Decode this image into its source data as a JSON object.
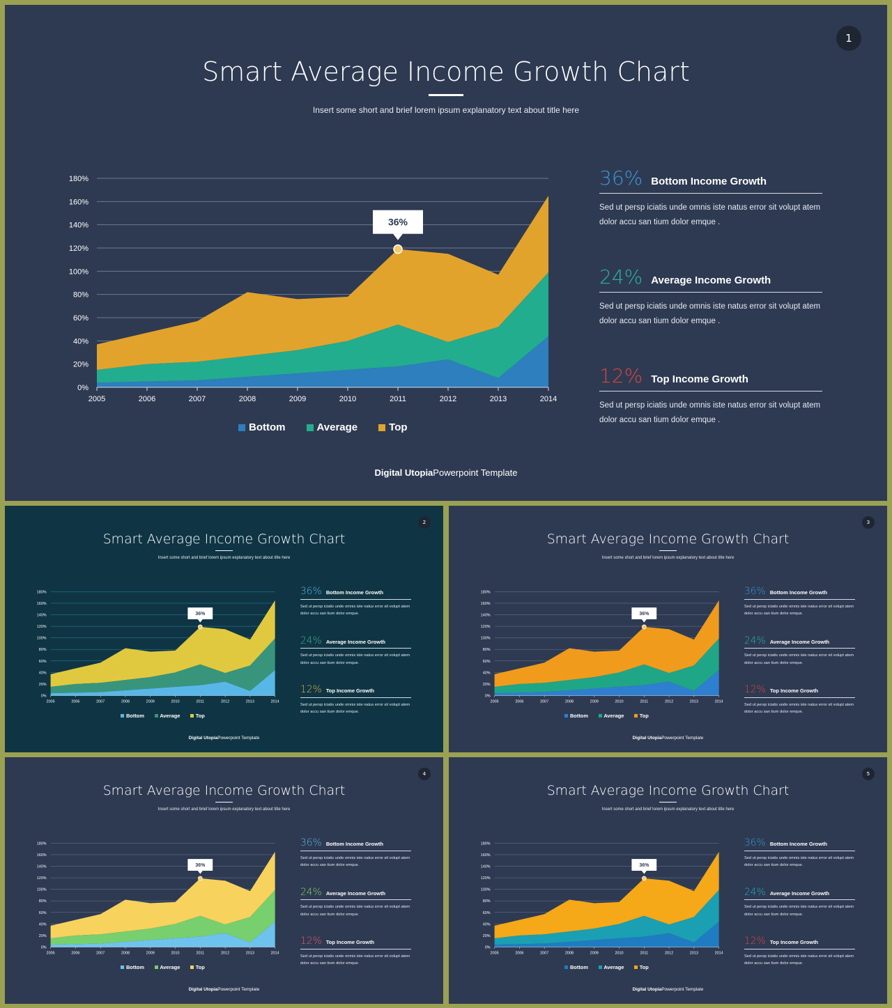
{
  "chart_data": {
    "type": "area",
    "stacked": true,
    "x": [
      "2005",
      "2006",
      "2007",
      "2008",
      "2009",
      "2010",
      "2011",
      "2012",
      "2013",
      "2014"
    ],
    "series": [
      {
        "name": "Bottom",
        "values": [
          4,
          5,
          6,
          9,
          12,
          15,
          18,
          24,
          8,
          44
        ]
      },
      {
        "name": "Average",
        "values": [
          11,
          15,
          16,
          18,
          20,
          25,
          36,
          15,
          44,
          55
        ]
      },
      {
        "name": "Top",
        "values": [
          22,
          27,
          35,
          55,
          44,
          38,
          65,
          76,
          45,
          66
        ]
      }
    ],
    "ylim": [
      0,
      180
    ],
    "yticks": [
      "0%",
      "20%",
      "40%",
      "60%",
      "80%",
      "100%",
      "120%",
      "140%",
      "160%",
      "180%"
    ],
    "callout": {
      "label": "36%",
      "x": "2011"
    },
    "grid": true,
    "legend_position": "bottom"
  },
  "slides": [
    {
      "number": "1",
      "title": "Smart Average Income Growth Chart",
      "subtitle": "Insert some short and brief lorem ipsum explanatory text about title here",
      "colors": {
        "background": "#2e3a52",
        "bottom": "#2e7fbd",
        "average": "#22ad8f",
        "top": "#e2a32c",
        "callout_ring": "#e2a32c",
        "grid": "#6b7b96",
        "pct1": "#3a96d6",
        "pct2": "#2bb39b",
        "pct3": "#d8463f"
      },
      "stats": [
        {
          "percent": "36%",
          "label": "Bottom Income Growth",
          "body": "Sed ut persp iciatis unde omnis iste natus error sit volupt atem dolor accu san tium dolor emque ."
        },
        {
          "percent": "24%",
          "label": "Average Income Growth",
          "body": "Sed ut persp iciatis unde omnis iste natus error sit volupt atem dolor accu san tium dolor emque ."
        },
        {
          "percent": "12%",
          "label": "Top Income Growth",
          "body": "Sed ut persp iciatis unde omnis iste natus error sit volupt atem dolor accu san tium dolor emque ."
        }
      ],
      "legend": [
        "Bottom",
        "Average",
        "Top"
      ],
      "footer_brand": "Digital Utopia",
      "footer_rest": "Powerpoint Template"
    },
    {
      "number": "2",
      "title": "Smart Average Income Growth Chart",
      "subtitle": "Insert some short and brief lorem ipsum explanatory text about title here",
      "colors": {
        "background": "#0f3544",
        "bottom": "#59b7e8",
        "average": "#38957c",
        "top": "#e0c93f",
        "callout_ring": "#e0c93f",
        "grid": "#2a8aa6",
        "pct1": "#5ab3e3",
        "pct2": "#3fae8f",
        "pct3": "#e0b13c"
      },
      "stats": [
        {
          "percent": "36%",
          "label": "Bottom Income Growth",
          "body": "Sed ut persp iciatis unde omnis iste natus error sit volupt atem dolor accu san tium dolor emque."
        },
        {
          "percent": "24%",
          "label": "Average Income Growth",
          "body": "Sed ut persp iciatis unde omnis iste natus error sit volupt atem dolor accu san tium dolor emque."
        },
        {
          "percent": "12%",
          "label": "Top Income Growth",
          "body": "Sed ut persp iciatis unde omnis iste natus error sit volupt atem dolor accu san tium dolor emque."
        }
      ],
      "legend": [
        "Bottom",
        "Average",
        "Top"
      ],
      "footer_brand": "Digital Utopia",
      "footer_rest": "Powerpoint Template"
    },
    {
      "number": "3",
      "title": "Smart Average Income Growth Chart",
      "subtitle": "Insert some short and brief lorem ipsum explanatory text about title here",
      "colors": {
        "background": "#2e3a52",
        "bottom": "#2e7fd0",
        "average": "#1fa687",
        "top": "#f19b1c",
        "callout_ring": "#f19b1c",
        "grid": "#6b7b96",
        "pct1": "#3a96d6",
        "pct2": "#2bb39b",
        "pct3": "#d8463f"
      },
      "stats": [
        {
          "percent": "36%",
          "label": "Bottom Income Growth",
          "body": "Sed ut persp iciatis unde omnis iste natus error sit volupt atem dolor accu san tium dolor emque."
        },
        {
          "percent": "24%",
          "label": "Average Income Growth",
          "body": "Sed ut persp iciatis unde omnis iste natus error sit volupt atem dolor accu san tium dolor emque."
        },
        {
          "percent": "12%",
          "label": "Top Income Growth",
          "body": "Sed ut persp iciatis unde omnis iste natus error sit volupt atem dolor accu san tium dolor emque."
        }
      ],
      "legend": [
        "Bottom",
        "Average",
        "Top"
      ],
      "footer_brand": "Digital Utopia",
      "footer_rest": "Powerpoint Template"
    },
    {
      "number": "4",
      "title": "Smart Average Income Growth Chart",
      "subtitle": "Insert some short and brief lorem ipsum explanatory text about title here",
      "colors": {
        "background": "#2e3a52",
        "bottom": "#6ec3ee",
        "average": "#78cf6e",
        "top": "#f7d25d",
        "callout_ring": "#f7d25d",
        "grid": "#6b7b96",
        "pct1": "#5ab3e3",
        "pct2": "#7fcf6a",
        "pct3": "#e3586a"
      },
      "stats": [
        {
          "percent": "36%",
          "label": "Bottom Income Growth",
          "body": "Sed ut persp iciatis unde omnis iste natus error sit volupt atem dolor accu san tium dolor emque."
        },
        {
          "percent": "24%",
          "label": "Average Income Growth",
          "body": "Sed ut persp iciatis unde omnis iste natus error sit volupt atem dolor accu san tium dolor emque."
        },
        {
          "percent": "12%",
          "label": "Top Income Growth",
          "body": "Sed ut persp iciatis unde omnis iste natus error sit volupt atem dolor accu san tium dolor emque."
        }
      ],
      "legend": [
        "Bottom",
        "Average",
        "Top"
      ],
      "footer_brand": "Digital Utopia",
      "footer_rest": "Powerpoint Template"
    },
    {
      "number": "5",
      "title": "Smart Average Income Growth Chart",
      "subtitle": "Insert some short and brief lorem ipsum explanatory text about title here",
      "colors": {
        "background": "#2e3a52",
        "bottom": "#1f7cc2",
        "average": "#1aa0b2",
        "top": "#f5a818",
        "callout_ring": "#f5a818",
        "grid": "#6b7b96",
        "pct1": "#3a96d6",
        "pct2": "#1fb0c4",
        "pct3": "#d8463f"
      },
      "stats": [
        {
          "percent": "36%",
          "label": "Bottom Income Growth",
          "body": "Sed ut persp iciatis unde omnis iste natus error sit volupt atem dolor accu san tium dolor emque."
        },
        {
          "percent": "24%",
          "label": "Average Income Growth",
          "body": "Sed ut persp iciatis unde omnis iste natus error sit volupt atem dolor accu san tium dolor emque."
        },
        {
          "percent": "12%",
          "label": "Top Income Growth",
          "body": "Sed ut persp iciatis unde omnis iste natus error sit volupt atem dolor accu san tium dolor emque."
        }
      ],
      "legend": [
        "Bottom",
        "Average",
        "Top"
      ],
      "footer_brand": "Digital Utopia",
      "footer_rest": "Powerpoint Template"
    }
  ]
}
